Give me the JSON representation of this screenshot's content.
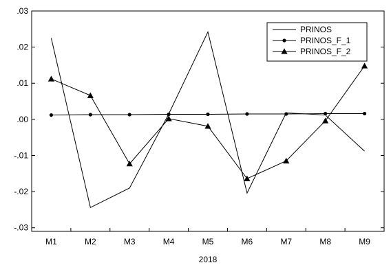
{
  "chart_data": {
    "type": "line",
    "title": "",
    "xlabel": "2018",
    "ylabel": "",
    "categories": [
      "M1",
      "M2",
      "M3",
      "M4",
      "M5",
      "M6",
      "M7",
      "M8",
      "M9"
    ],
    "yticks": [
      0.03,
      0.02,
      0.01,
      0.0,
      -0.01,
      -0.02,
      -0.03
    ],
    "ytick_labels": [
      ".03",
      ".02",
      ".01",
      ".00",
      "-.01",
      "-.02",
      "-.03"
    ],
    "ylim": [
      -0.031,
      0.03
    ],
    "grid": false,
    "legend_position": "top-right",
    "series": [
      {
        "name": "PRINOS",
        "marker": "none",
        "values": [
          0.0225,
          -0.0244,
          -0.019,
          0.0015,
          0.0242,
          -0.0204,
          0.0018,
          0.0012,
          -0.0088
        ]
      },
      {
        "name": "PRINOS_F_1",
        "marker": "circle",
        "values": [
          0.0012,
          0.0013,
          0.0013,
          0.0014,
          0.0014,
          0.0015,
          0.0015,
          0.0016,
          0.0016
        ]
      },
      {
        "name": "PRINOS_F_2",
        "marker": "triangle",
        "values": [
          0.0112,
          0.0066,
          -0.0123,
          0.0002,
          -0.0019,
          -0.0164,
          -0.0115,
          -0.0004,
          0.0148
        ]
      }
    ]
  }
}
